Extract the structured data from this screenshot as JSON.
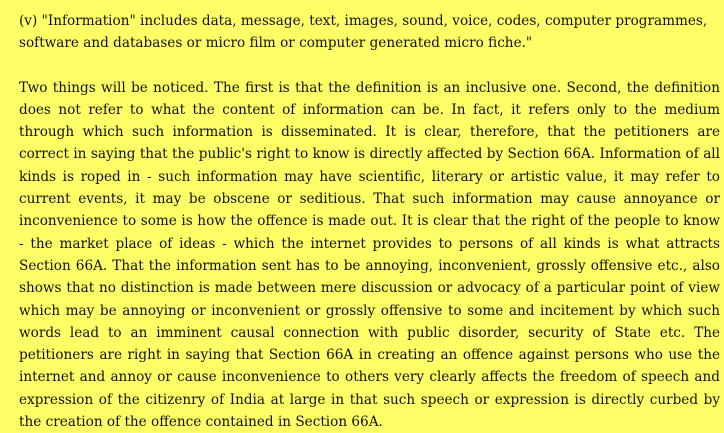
{
  "document": {
    "definition_clause": "(v) \"Information\" includes data, message, text, images, sound, voice, codes, computer programmes, software and databases or micro film or computer generated micro fiche.\"",
    "analysis_paragraph": "Two things will be noticed. The first is that the definition is an inclusive one. Second, the definition does not refer to what the content of information can be. In fact, it refers only to the medium through which such information is disseminated. It is clear, therefore, that the petitioners are correct in saying that the public's right to know is directly affected by Section 66A. Information of all kinds is roped in - such information may have scientific, literary or artistic value, it may refer to current events, it may be obscene or seditious. That such information may cause annoyance or inconvenience to some is how the offence is made out. It is clear that the right of the people to know - the market place of ideas - which the internet provides to persons of all kinds is what attracts Section 66A. That the information sent has to be annoying, inconvenient, grossly offensive etc., also shows that no distinction is made between mere discussion or advocacy of a particular point of view which may be annoying or inconvenient or grossly offensive to some and incitement by which such words lead to an imminent causal connection with public disorder, security of State etc. The petitioners are right in saying that Section 66A in creating an offence against persons who use the internet and annoy or cause inconvenience to others very clearly affects the freedom of speech and expression of the citizenry of India at large in that such speech or expression is directly curbed by the creation of the offence contained in Section 66A.",
    "background_color": "#ffff66",
    "text_color": "#111111"
  }
}
